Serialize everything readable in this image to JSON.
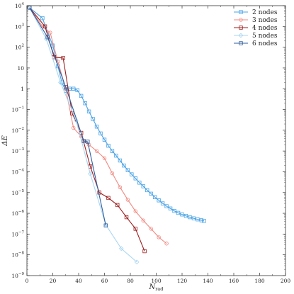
{
  "chart_data": {
    "type": "line",
    "xlabel": "N",
    "xlabel_sub": "rad",
    "ylabel": "ΔE",
    "xlim": [
      0,
      200
    ],
    "ylim": [
      1e-09,
      10000
    ],
    "y_scale": "log",
    "x_ticks": [
      0,
      20,
      40,
      60,
      80,
      100,
      120,
      140,
      160,
      180,
      200
    ],
    "y_ticks": [
      {
        "value": 1e-09,
        "base": "10",
        "exp": "−9"
      },
      {
        "value": 1e-08,
        "base": "10",
        "exp": "−8"
      },
      {
        "value": 1e-07,
        "base": "10",
        "exp": "−7"
      },
      {
        "value": 1e-06,
        "base": "10",
        "exp": "−6"
      },
      {
        "value": 1e-05,
        "base": "10",
        "exp": "−5"
      },
      {
        "value": 0.0001,
        "base": "10",
        "exp": "−4"
      },
      {
        "value": 0.001,
        "base": "10",
        "exp": "−3"
      },
      {
        "value": 0.01,
        "base": "10",
        "exp": "−2"
      },
      {
        "value": 0.1,
        "base": "10",
        "exp": "−1"
      },
      {
        "value": 1,
        "base": "1",
        "exp": ""
      },
      {
        "value": 10,
        "base": "10",
        "exp": ""
      },
      {
        "value": 100,
        "base": "10",
        "exp": "2"
      },
      {
        "value": 1000,
        "base": "10",
        "exp": "3"
      },
      {
        "value": 10000,
        "base": "10",
        "exp": "4"
      }
    ],
    "legend_position": "top-right",
    "series": [
      {
        "name": "2 nodes",
        "color": "#4aa3e6",
        "marker": "square",
        "x": [
          2,
          12,
          20,
          24,
          27,
          30,
          33,
          36,
          39,
          42,
          45,
          48,
          51,
          54,
          57,
          60,
          63,
          66,
          69,
          72,
          75,
          78,
          81,
          84,
          87,
          90,
          93,
          96,
          99,
          102,
          105,
          108,
          111,
          114,
          117,
          120,
          123,
          126,
          129,
          132,
          135,
          137
        ],
        "y": [
          8000,
          2500,
          120,
          12,
          2,
          0.8,
          1,
          1,
          0.85,
          0.45,
          0.2,
          0.08,
          0.035,
          0.015,
          0.007,
          0.0035,
          0.0018,
          0.001,
          0.0006,
          0.00035,
          0.0002,
          0.00012,
          7.5e-05,
          4.8e-05,
          3e-05,
          2e-05,
          1.3e-05,
          8.8e-06,
          6e-06,
          4.2e-06,
          3e-06,
          2.2e-06,
          1.7e-06,
          1.3e-06,
          1.05e-06,
          8.8e-07,
          7.5e-07,
          6.5e-07,
          5.7e-07,
          5.1e-07,
          4.6e-07,
          4.3e-07
        ]
      },
      {
        "name": "3 nodes",
        "color": "#f08a82",
        "marker": "circle",
        "x": [
          2,
          12,
          18,
          24,
          30,
          36,
          42,
          48,
          54,
          60,
          66,
          72,
          78,
          84,
          90,
          96,
          102,
          108
        ],
        "y": [
          8000,
          1000,
          500,
          20,
          1,
          0.013,
          0.005,
          0.002,
          0.001,
          0.00045,
          8.5e-05,
          1.8e-05,
          4.5e-06,
          1.25e-06,
          4.5e-07,
          1.8e-07,
          7e-08,
          3.5e-08
        ]
      },
      {
        "name": "4 nodes",
        "color": "#9c1e1e",
        "marker": "square",
        "x": [
          2,
          14,
          21,
          28,
          35,
          42,
          49,
          56,
          63,
          70,
          77,
          84,
          91
        ],
        "y": [
          8000,
          1000,
          33,
          30,
          0.065,
          0.0075,
          0.00018,
          1e-05,
          5.5e-06,
          2.5e-06,
          6.5e-07,
          1.8e-07,
          1.5e-08
        ]
      },
      {
        "name": "5 nodes",
        "color": "#a8d6f2",
        "marker": "diamond",
        "x": [
          2,
          15,
          26,
          38,
          49,
          61,
          73,
          85
        ],
        "y": [
          8000,
          250,
          2,
          0.03,
          8e-05,
          2.8e-07,
          2e-08,
          4.5e-09
        ]
      },
      {
        "name": "6 nodes",
        "color": "#2f5f9e",
        "marker": "square",
        "x": [
          2,
          16,
          30,
          44,
          47,
          61
        ],
        "y": [
          8000,
          300,
          1.2,
          0.003,
          0.0028,
          2.6e-07
        ]
      }
    ]
  }
}
